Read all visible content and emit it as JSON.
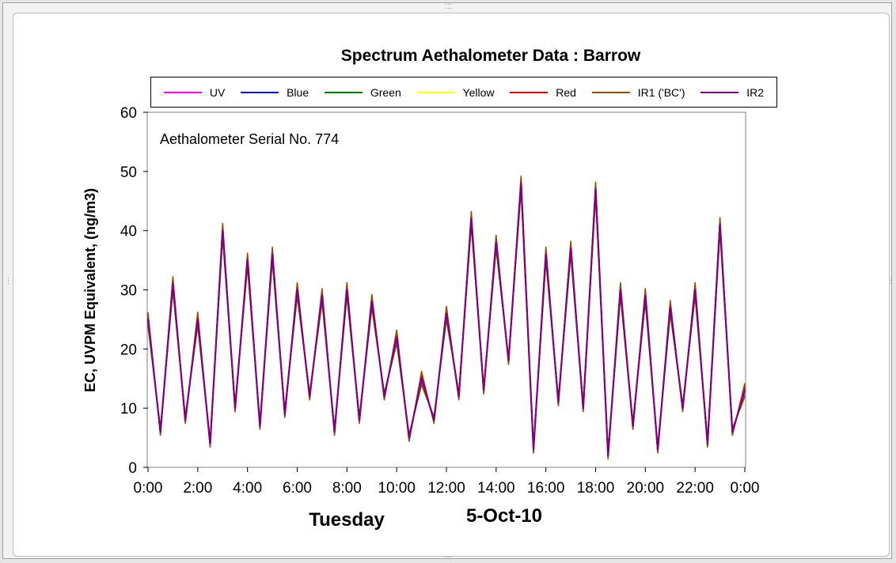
{
  "chart_data": {
    "type": "line",
    "title": "Spectrum Aethalometer Data  :  Barrow",
    "annotation": "Aethalometer  Serial No. 774",
    "ylabel": "EC, UVPM  Equivalent, (ng/m3)",
    "xlabel_day": "Tuesday",
    "xlabel_date": "5-Oct-10",
    "ylim": [
      0,
      60
    ],
    "yticks": [
      "0",
      "10",
      "20",
      "30",
      "40",
      "50",
      "60"
    ],
    "xlim_hours": [
      0,
      24
    ],
    "xticks": [
      "0:00",
      "2:00",
      "4:00",
      "6:00",
      "8:00",
      "10:00",
      "12:00",
      "14:00",
      "16:00",
      "18:00",
      "20:00",
      "22:00",
      "0:00"
    ],
    "grid": false,
    "legend_position": "top",
    "series": [
      {
        "name": "UV",
        "color": "#ff00ff",
        "offset": -0.6
      },
      {
        "name": "Blue",
        "color": "#0000cc",
        "offset": 0.4
      },
      {
        "name": "Green",
        "color": "#008000",
        "offset": -1.0
      },
      {
        "name": "Yellow",
        "color": "#ffff00",
        "offset": -1.4
      },
      {
        "name": "Red",
        "color": "#dd0000",
        "offset": 0.8
      },
      {
        "name": "IR1 ('BC')",
        "color": "#994c00",
        "offset": 1.2
      },
      {
        "name": "IR2",
        "color": "#800080",
        "offset": 0
      }
    ],
    "ir2_hourly_x": [
      0,
      0.5,
      1,
      1.5,
      2,
      2.5,
      3,
      3.5,
      4,
      4.5,
      5,
      5.5,
      6,
      6.5,
      7,
      7.5,
      8,
      8.5,
      9,
      9.5,
      10,
      10.5,
      11,
      11.5,
      12,
      12.5,
      13,
      13.5,
      14,
      14.5,
      15,
      15.5,
      16,
      16.5,
      17,
      17.5,
      18,
      18.5,
      19,
      19.5,
      20,
      20.5,
      21,
      21.5,
      22,
      22.5,
      23,
      23.5,
      24
    ],
    "ir2_values": [
      25,
      6,
      31,
      8,
      25,
      4,
      40,
      10,
      35,
      7,
      36,
      9,
      30,
      12,
      29,
      6,
      30,
      8,
      28,
      12,
      22,
      5,
      15,
      8,
      26,
      12,
      42,
      13,
      38,
      18,
      48,
      3,
      36,
      11,
      37,
      10,
      47,
      2,
      30,
      7,
      29,
      3,
      27,
      10,
      30,
      4,
      41,
      6,
      13
    ]
  }
}
